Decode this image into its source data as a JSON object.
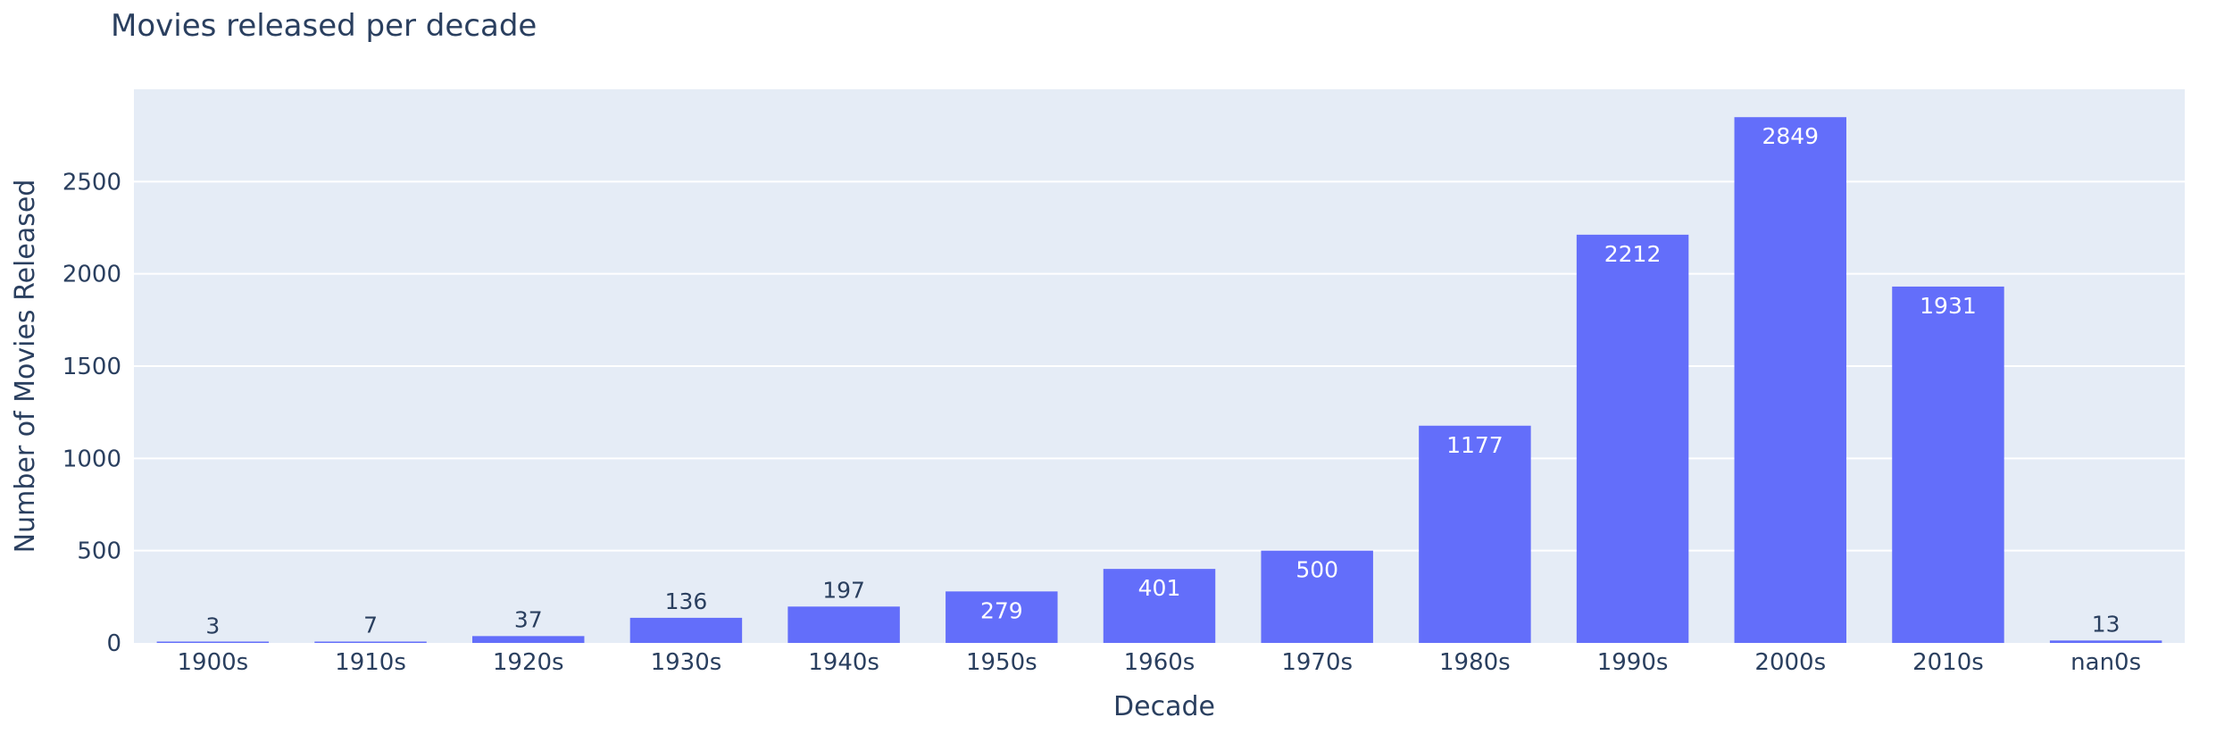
{
  "chart_data": {
    "type": "bar",
    "title": "Movies released per decade",
    "xlabel": "Decade",
    "ylabel": "Number of Movies Released",
    "categories": [
      "1900s",
      "1910s",
      "1920s",
      "1930s",
      "1940s",
      "1950s",
      "1960s",
      "1970s",
      "1980s",
      "1990s",
      "2000s",
      "2010s",
      "nan0s"
    ],
    "values": [
      3,
      7,
      37,
      136,
      197,
      279,
      401,
      500,
      1177,
      2212,
      2849,
      1931,
      13
    ],
    "ylim": [
      0,
      3000
    ],
    "yticks": [
      0,
      500,
      1000,
      1500,
      2000,
      2500
    ],
    "grid": true,
    "colors": {
      "bar": "#636efa",
      "plot_bg": "#e5ecf6",
      "grid": "#ffffff",
      "text": "#2a3f5f",
      "label_inside": "#ffffff"
    }
  }
}
